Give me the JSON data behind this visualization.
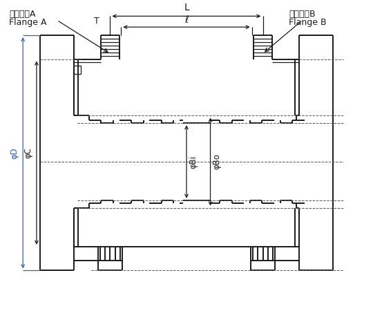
{
  "bg_color": "#ffffff",
  "line_color": "#1a1a1a",
  "blue_color": "#3060c0",
  "dash_color": "#555555",
  "label_flangeA_jp": "フランジA",
  "label_flangeA_en": "Flange A",
  "label_flangeB_jp": "フランジB",
  "label_flangeB_en": "Flange B",
  "label_L": "L",
  "label_ell": "ℓ",
  "label_T": "T",
  "label_D": "φD",
  "label_C": "φC",
  "label_Bi": "φBi",
  "label_Bo": "φBo"
}
